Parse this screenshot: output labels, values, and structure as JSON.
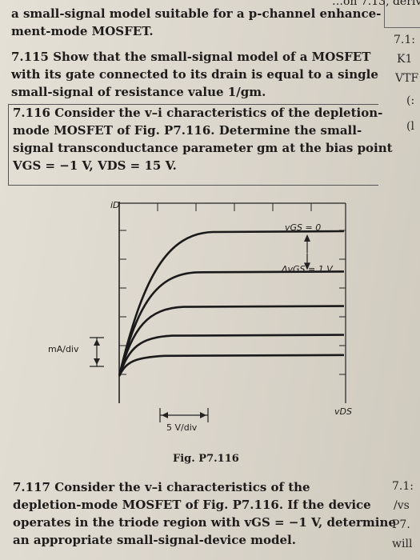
{
  "header_fragment": "…on 7.13, derive",
  "lines": [
    "a small-signal model suitable for a p-channel enhance-",
    "ment-mode MOSFET.",
    "7.115 Show that the small-signal model of a MOSFET",
    "with its gate connected to its drain is equal to a single",
    "small-signal of resistance value 1/gm.",
    "7.116 Consider the v–i characteristics of the depletion-",
    "mode MOSFET of Fig. P7.116. Determine the small-",
    "signal transconductance parameter gm at the bias point",
    "VGS = −1 V, VDS = 15 V.",
    "7.117 Consider the v–i characteristics of the",
    "depletion-mode MOSFET of Fig. P7.116. If the device",
    "operates in the triode region with vGS = −1 V, determine",
    "an appropriate small-signal-device model."
  ],
  "right_margin": [
    "7.1:",
    "K1",
    "VTF",
    "(:",
    "(l",
    "7.1:",
    "/vs",
    "P7.",
    "will"
  ],
  "figure": {
    "y_axis_label": "iD",
    "x_axis_label": "vDS",
    "curve_top_label": "vGS = 0",
    "delta_label": "ΔvGS = 1 V",
    "y_scale_label": "mA/div",
    "x_scale_label": "5 V/div",
    "caption": "Fig. P7.116"
  },
  "chart_data": {
    "type": "line",
    "title": "",
    "xlabel": "vDS",
    "ylabel": "iD",
    "x_unit_per_div": "5 V/div",
    "y_unit_per_div": "mA/div",
    "series_count": 5,
    "series": [
      {
        "name": "vGS = 0",
        "saturation_level_div": 5.0
      },
      {
        "values_label": "",
        "saturation_level_div": 3.6
      },
      {
        "values_label": "",
        "saturation_level_div": 2.4
      },
      {
        "values_label": "",
        "saturation_level_div": 1.4
      },
      {
        "values_label": "",
        "saturation_level_div": 0.7
      }
    ]
  }
}
